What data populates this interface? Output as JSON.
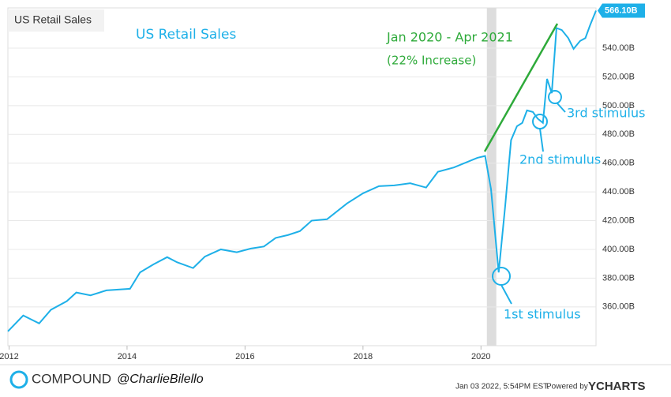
{
  "chart_data": {
    "type": "line",
    "title": "US Retail Sales",
    "annotations": {
      "chart_label": "US Retail Sales",
      "period": "Jan 2020 - Apr 2021",
      "increase": "(22% Increase)",
      "stim1": "1st stimulus",
      "stim2": "2nd stimulus",
      "stim3": "3rd stimulus"
    },
    "last_value_label": "566.10B",
    "footer": {
      "brand": "COMPOUND",
      "handle": "@CharlieBilello",
      "timestamp": "Jan 03 2022, 5:54PM EST.",
      "powered": "Powered by",
      "provider": "YCHARTS"
    },
    "series": [
      {
        "name": "US Retail Sales",
        "color": "#1eb0e8",
        "x": [
          2011.98,
          2012.24,
          2012.51,
          2012.71,
          2012.98,
          2013.14,
          2013.38,
          2013.65,
          2014.05,
          2014.22,
          2014.45,
          2014.68,
          2014.85,
          2015.12,
          2015.32,
          2015.59,
          2015.86,
          2016.1,
          2016.32,
          2016.52,
          2016.73,
          2016.93,
          2017.13,
          2017.39,
          2017.73,
          2018.0,
          2018.27,
          2018.53,
          2018.8,
          2019.07,
          2019.27,
          2019.54,
          2019.94,
          2020.07,
          2020.17,
          2020.3,
          2020.41,
          2020.51,
          2020.61,
          2020.7,
          2020.78,
          2020.88,
          2020.96,
          2021.05,
          2021.12,
          2021.2,
          2021.28,
          2021.37,
          2021.48,
          2021.57,
          2021.68,
          2021.77,
          2021.85,
          2021.95
        ],
        "values": [
          343,
          354,
          348.5,
          358,
          364,
          370,
          368,
          371.5,
          372.6,
          384,
          389.6,
          394.6,
          391,
          387,
          395,
          400,
          398,
          400.6,
          402,
          408,
          410,
          412.7,
          420,
          421,
          432,
          439,
          444,
          444.5,
          446,
          443,
          454,
          457,
          463.7,
          465,
          442,
          384,
          430,
          476,
          485.7,
          488,
          496.7,
          495.6,
          491,
          488,
          518.6,
          508.7,
          554,
          552.6,
          547,
          539.5,
          545,
          547,
          556,
          566.1
        ]
      }
    ],
    "recession": [
      2020.1,
      2020.26
    ],
    "xlim": [
      2011.98,
      2021.95
    ],
    "xticks": [
      2012,
      2014,
      2016,
      2018,
      2020
    ],
    "ylim": [
      333,
      568
    ],
    "yticks": [
      {
        "value": 360,
        "label": "360.00B"
      },
      {
        "value": 380,
        "label": "380.00B"
      },
      {
        "value": 400,
        "label": "400.00B"
      },
      {
        "value": 420,
        "label": "420.00B"
      },
      {
        "value": 440,
        "label": "440.00B"
      },
      {
        "value": 460,
        "label": "460.00B"
      },
      {
        "value": 480,
        "label": "480.00B"
      },
      {
        "value": 500,
        "label": "500.00B"
      },
      {
        "value": 520,
        "label": "520.00B"
      },
      {
        "value": 540,
        "label": "540.00B"
      }
    ],
    "grid": true
  }
}
